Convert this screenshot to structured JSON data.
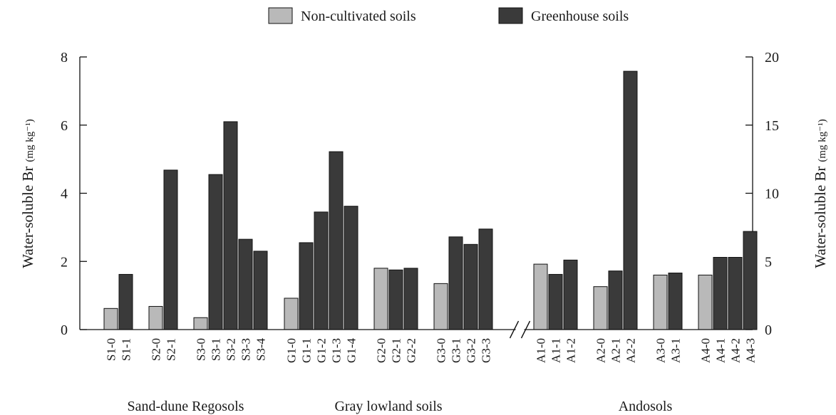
{
  "chart_data": {
    "type": "bar",
    "legend": {
      "placement": "top-center",
      "entries": [
        {
          "label": "Non-cultivated soils",
          "color": "#b9b9b9"
        },
        {
          "label": "Greenhouse soils",
          "color": "#3a3a3a"
        }
      ]
    },
    "y_left": {
      "label": "Water-soluble Br",
      "unit": "(mg kg⁻¹)",
      "range": [
        0,
        8
      ],
      "ticks": [
        "0",
        "2",
        "4",
        "6",
        "8"
      ]
    },
    "y_right": {
      "label": "Water-soluble Br",
      "unit": "(mg kg⁻¹)",
      "range": [
        0,
        20
      ],
      "ticks": [
        "0",
        "5",
        "10",
        "15",
        "20"
      ]
    },
    "grid": false,
    "axis_break": "//",
    "groups": [
      {
        "name": "Sand-dune Regosols",
        "axis": "left",
        "clusters": [
          {
            "bars": [
              {
                "label": "S1-0",
                "type": "non-cultivated",
                "value": 0.62
              },
              {
                "label": "S1-1",
                "type": "greenhouse",
                "value": 1.62
              }
            ]
          },
          {
            "bars": [
              {
                "label": "S2-0",
                "type": "non-cultivated",
                "value": 0.68
              },
              {
                "label": "S2-1",
                "type": "greenhouse",
                "value": 4.68
              }
            ]
          },
          {
            "bars": [
              {
                "label": "S3-0",
                "type": "non-cultivated",
                "value": 0.35
              },
              {
                "label": "S3-1",
                "type": "greenhouse",
                "value": 4.55
              },
              {
                "label": "S3-2",
                "type": "greenhouse",
                "value": 6.1
              },
              {
                "label": "S3-3",
                "type": "greenhouse",
                "value": 2.65
              },
              {
                "label": "S3-4",
                "type": "greenhouse",
                "value": 2.3
              }
            ]
          }
        ]
      },
      {
        "name": "Gray lowland soils",
        "axis": "left",
        "clusters": [
          {
            "bars": [
              {
                "label": "G1-0",
                "type": "non-cultivated",
                "value": 0.92
              },
              {
                "label": "G1-1",
                "type": "greenhouse",
                "value": 2.55
              },
              {
                "label": "G1-2",
                "type": "greenhouse",
                "value": 3.45
              },
              {
                "label": "G1-3",
                "type": "greenhouse",
                "value": 5.22
              },
              {
                "label": "G1-4",
                "type": "greenhouse",
                "value": 3.62
              }
            ]
          },
          {
            "bars": [
              {
                "label": "G2-0",
                "type": "non-cultivated",
                "value": 1.8
              },
              {
                "label": "G2-1",
                "type": "greenhouse",
                "value": 1.75
              },
              {
                "label": "G2-2",
                "type": "greenhouse",
                "value": 1.8
              }
            ]
          },
          {
            "bars": [
              {
                "label": "G3-0",
                "type": "non-cultivated",
                "value": 1.35
              },
              {
                "label": "G3-1",
                "type": "greenhouse",
                "value": 2.72
              },
              {
                "label": "G3-2",
                "type": "greenhouse",
                "value": 2.5
              },
              {
                "label": "G3-3",
                "type": "greenhouse",
                "value": 2.95
              }
            ]
          }
        ]
      },
      {
        "name": "Andosols",
        "axis": "right",
        "clusters": [
          {
            "bars": [
              {
                "label": "A1-0",
                "type": "non-cultivated",
                "value": 4.8
              },
              {
                "label": "A1-1",
                "type": "greenhouse",
                "value": 4.05
              },
              {
                "label": "A1-2",
                "type": "greenhouse",
                "value": 5.1
              }
            ]
          },
          {
            "bars": [
              {
                "label": "A2-0",
                "type": "non-cultivated",
                "value": 3.15
              },
              {
                "label": "A2-1",
                "type": "greenhouse",
                "value": 4.3
              },
              {
                "label": "A2-2",
                "type": "greenhouse",
                "value": 18.95
              }
            ]
          },
          {
            "bars": [
              {
                "label": "A3-0",
                "type": "non-cultivated",
                "value": 4.0
              },
              {
                "label": "A3-1",
                "type": "greenhouse",
                "value": 4.15
              }
            ]
          },
          {
            "bars": [
              {
                "label": "A4-0",
                "type": "non-cultivated",
                "value": 4.0
              },
              {
                "label": "A4-1",
                "type": "greenhouse",
                "value": 5.3
              },
              {
                "label": "A4-2",
                "type": "greenhouse",
                "value": 5.3
              },
              {
                "label": "A4-3",
                "type": "greenhouse",
                "value": 7.2
              }
            ]
          }
        ]
      }
    ]
  }
}
